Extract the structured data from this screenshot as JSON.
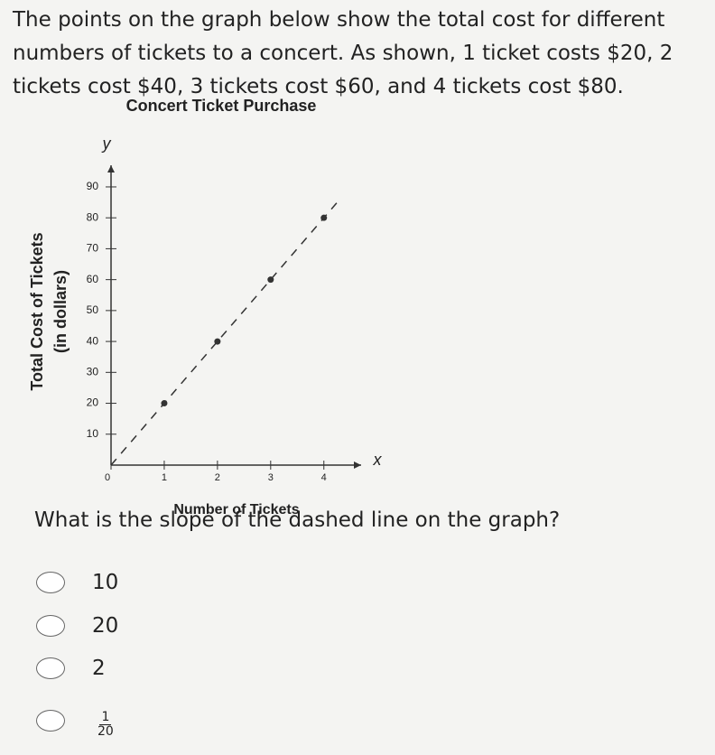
{
  "question_intro": "The points on the graph below show the total cost for different numbers of tickets to a concert. As shown, 1 ticket costs $20, 2 tickets cost $40, 3 tickets cost $60, and 4 tickets cost $80.",
  "chart_data": {
    "type": "scatter",
    "title": "Concert Ticket Purchase",
    "x_label": "Number of Tickets",
    "y_label": [
      "Total Cost of Tickets",
      "(in dollars)"
    ],
    "x_axis_letter": "x",
    "y_axis_letter": "y",
    "x": [
      1,
      2,
      3,
      4
    ],
    "values": [
      20,
      40,
      60,
      80
    ],
    "color": "#333333",
    "line": {
      "x": [
        0,
        1,
        2,
        3,
        4,
        4.3
      ],
      "values": [
        0,
        20,
        40,
        60,
        80,
        86
      ],
      "dashed": true
    },
    "xlim": [
      0,
      4.7
    ],
    "ylim": [
      0,
      97
    ],
    "xticks": [
      0,
      1,
      2,
      3,
      4
    ],
    "yticks": [
      10,
      20,
      30,
      40,
      50,
      60,
      70,
      80,
      90
    ]
  },
  "question": "What is the slope of the dashed line on the graph?",
  "options": [
    "10",
    "20",
    "2",
    {
      "numerator": "1",
      "denominator": "20"
    }
  ]
}
